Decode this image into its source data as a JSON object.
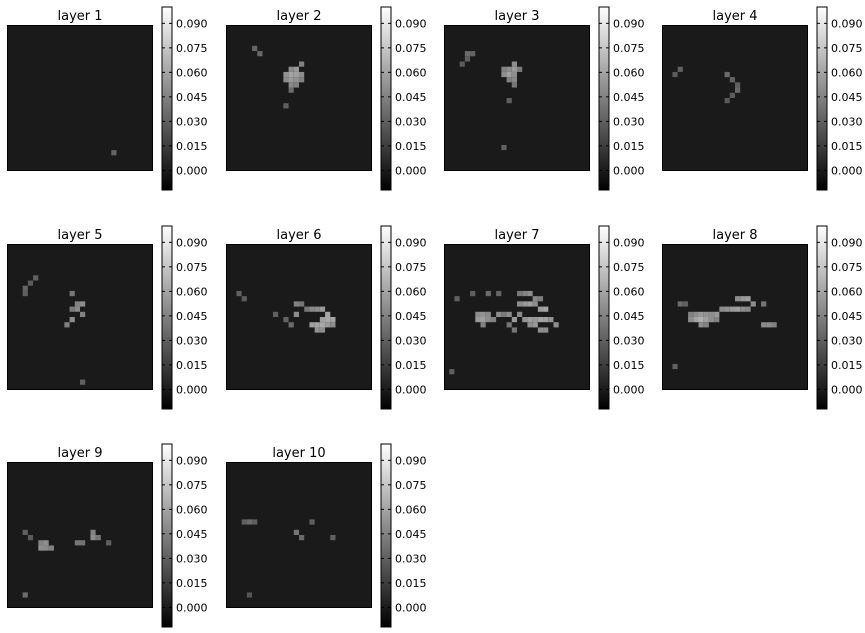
{
  "chart_data": {
    "type": "heatmap",
    "colormap": "gray",
    "background_color": "#1a1a1a",
    "colorbar_ticks": [
      "0.000",
      "0.015",
      "0.030",
      "0.045",
      "0.060",
      "0.075",
      "0.090"
    ],
    "grid_size": 28,
    "panels": [
      {
        "title": "layer 1",
        "cells": [
          [
            20,
            24,
            0.032
          ]
        ]
      },
      {
        "title": "layer 2",
        "cells": [
          [
            5,
            4,
            0.033
          ],
          [
            6,
            5,
            0.033
          ],
          [
            12,
            8,
            0.05
          ],
          [
            13,
            8,
            0.055
          ],
          [
            14,
            7,
            0.045
          ],
          [
            11,
            9,
            0.052
          ],
          [
            12,
            9,
            0.06
          ],
          [
            13,
            9,
            0.058
          ],
          [
            14,
            9,
            0.05
          ],
          [
            11,
            10,
            0.05
          ],
          [
            12,
            10,
            0.056
          ],
          [
            13,
            10,
            0.052
          ],
          [
            14,
            10,
            0.045
          ],
          [
            12,
            11,
            0.048
          ],
          [
            13,
            11,
            0.045
          ],
          [
            12,
            12,
            0.035
          ],
          [
            11,
            15,
            0.03
          ]
        ]
      },
      {
        "title": "layer 3",
        "cells": [
          [
            4,
            5,
            0.035
          ],
          [
            5,
            5,
            0.032
          ],
          [
            4,
            6,
            0.03
          ],
          [
            3,
            7,
            0.028
          ],
          [
            13,
            7,
            0.05
          ],
          [
            11,
            8,
            0.045
          ],
          [
            12,
            8,
            0.05
          ],
          [
            13,
            8,
            0.055
          ],
          [
            14,
            8,
            0.042
          ],
          [
            11,
            9,
            0.05
          ],
          [
            12,
            9,
            0.058
          ],
          [
            13,
            9,
            0.05
          ],
          [
            12,
            10,
            0.045
          ],
          [
            13,
            10,
            0.048
          ],
          [
            13,
            11,
            0.04
          ],
          [
            12,
            14,
            0.03
          ],
          [
            11,
            23,
            0.03
          ]
        ]
      },
      {
        "title": "layer 4",
        "cells": [
          [
            3,
            8,
            0.03
          ],
          [
            2,
            9,
            0.028
          ],
          [
            12,
            9,
            0.035
          ],
          [
            13,
            10,
            0.032
          ],
          [
            14,
            11,
            0.03
          ],
          [
            14,
            12,
            0.034
          ],
          [
            13,
            13,
            0.028
          ],
          [
            12,
            14,
            0.027
          ]
        ]
      },
      {
        "title": "layer 5",
        "cells": [
          [
            5,
            6,
            0.03
          ],
          [
            4,
            7,
            0.028
          ],
          [
            3,
            8,
            0.032
          ],
          [
            3,
            9,
            0.03
          ],
          [
            12,
            9,
            0.04
          ],
          [
            13,
            11,
            0.045
          ],
          [
            14,
            11,
            0.05
          ],
          [
            12,
            12,
            0.042
          ],
          [
            13,
            12,
            0.048
          ],
          [
            14,
            13,
            0.045
          ],
          [
            12,
            14,
            0.05
          ],
          [
            11,
            15,
            0.044
          ],
          [
            14,
            26,
            0.03
          ]
        ]
      },
      {
        "title": "layer 6",
        "cells": [
          [
            2,
            9,
            0.03
          ],
          [
            3,
            10,
            0.028
          ],
          [
            13,
            11,
            0.045
          ],
          [
            14,
            11,
            0.04
          ],
          [
            15,
            12,
            0.04
          ],
          [
            13,
            13,
            0.05
          ],
          [
            16,
            12,
            0.048
          ],
          [
            17,
            12,
            0.05
          ],
          [
            18,
            12,
            0.055
          ],
          [
            19,
            13,
            0.06
          ],
          [
            18,
            14,
            0.058
          ],
          [
            19,
            14,
            0.062
          ],
          [
            20,
            14,
            0.06
          ],
          [
            16,
            15,
            0.058
          ],
          [
            17,
            15,
            0.06
          ],
          [
            18,
            15,
            0.062
          ],
          [
            19,
            15,
            0.055
          ],
          [
            20,
            15,
            0.05
          ],
          [
            17,
            16,
            0.052
          ],
          [
            18,
            16,
            0.05
          ],
          [
            9,
            13,
            0.03
          ],
          [
            12,
            15,
            0.035
          ],
          [
            11,
            14,
            0.032
          ]
        ]
      },
      {
        "title": "layer 7",
        "cells": [
          [
            2,
            10,
            0.03
          ],
          [
            5,
            9,
            0.03
          ],
          [
            8,
            9,
            0.035
          ],
          [
            10,
            9,
            0.032
          ],
          [
            14,
            9,
            0.04
          ],
          [
            15,
            9,
            0.045
          ],
          [
            16,
            9,
            0.05
          ],
          [
            17,
            10,
            0.048
          ],
          [
            18,
            10,
            0.044
          ],
          [
            14,
            11,
            0.05
          ],
          [
            15,
            11,
            0.055
          ],
          [
            16,
            11,
            0.058
          ],
          [
            17,
            11,
            0.05
          ],
          [
            18,
            12,
            0.056
          ],
          [
            19,
            12,
            0.06
          ],
          [
            6,
            13,
            0.05
          ],
          [
            7,
            13,
            0.052
          ],
          [
            8,
            13,
            0.048
          ],
          [
            6,
            14,
            0.055
          ],
          [
            7,
            14,
            0.058
          ],
          [
            8,
            14,
            0.05
          ],
          [
            9,
            14,
            0.045
          ],
          [
            10,
            13,
            0.05
          ],
          [
            11,
            13,
            0.042
          ],
          [
            12,
            13,
            0.05
          ],
          [
            13,
            14,
            0.055
          ],
          [
            14,
            13,
            0.048
          ],
          [
            15,
            14,
            0.052
          ],
          [
            16,
            14,
            0.058
          ],
          [
            17,
            14,
            0.055
          ],
          [
            18,
            14,
            0.06
          ],
          [
            19,
            14,
            0.058
          ],
          [
            20,
            14,
            0.052
          ],
          [
            21,
            15,
            0.05
          ],
          [
            7,
            15,
            0.045
          ],
          [
            12,
            15,
            0.04
          ],
          [
            16,
            15,
            0.05
          ],
          [
            17,
            15,
            0.055
          ],
          [
            18,
            16,
            0.05
          ],
          [
            19,
            16,
            0.05
          ],
          [
            13,
            16,
            0.04
          ],
          [
            1,
            24,
            0.03
          ]
        ]
      },
      {
        "title": "layer 8",
        "cells": [
          [
            3,
            11,
            0.035
          ],
          [
            4,
            11,
            0.03
          ],
          [
            14,
            10,
            0.05
          ],
          [
            15,
            10,
            0.055
          ],
          [
            16,
            10,
            0.058
          ],
          [
            17,
            11,
            0.05
          ],
          [
            19,
            11,
            0.04
          ],
          [
            5,
            13,
            0.045
          ],
          [
            6,
            13,
            0.05
          ],
          [
            7,
            13,
            0.055
          ],
          [
            8,
            13,
            0.052
          ],
          [
            9,
            13,
            0.05
          ],
          [
            10,
            13,
            0.055
          ],
          [
            11,
            12,
            0.05
          ],
          [
            12,
            12,
            0.052
          ],
          [
            13,
            12,
            0.055
          ],
          [
            14,
            12,
            0.058
          ],
          [
            15,
            12,
            0.05
          ],
          [
            16,
            12,
            0.048
          ],
          [
            5,
            14,
            0.05
          ],
          [
            6,
            14,
            0.06
          ],
          [
            7,
            14,
            0.065
          ],
          [
            8,
            14,
            0.058
          ],
          [
            9,
            14,
            0.05
          ],
          [
            10,
            14,
            0.045
          ],
          [
            7,
            15,
            0.05
          ],
          [
            8,
            15,
            0.045
          ],
          [
            19,
            15,
            0.048
          ],
          [
            20,
            15,
            0.05
          ],
          [
            21,
            15,
            0.045
          ],
          [
            2,
            23,
            0.03
          ]
        ]
      },
      {
        "title": "layer 9",
        "cells": [
          [
            3,
            13,
            0.03
          ],
          [
            4,
            14,
            0.028
          ],
          [
            6,
            15,
            0.045
          ],
          [
            7,
            15,
            0.05
          ],
          [
            6,
            16,
            0.05
          ],
          [
            7,
            16,
            0.048
          ],
          [
            8,
            16,
            0.045
          ],
          [
            13,
            15,
            0.04
          ],
          [
            14,
            15,
            0.038
          ],
          [
            16,
            13,
            0.045
          ],
          [
            17,
            14,
            0.04
          ],
          [
            16,
            14,
            0.05
          ],
          [
            19,
            15,
            0.03
          ],
          [
            3,
            25,
            0.035
          ]
        ]
      },
      {
        "title": "layer 10",
        "cells": [
          [
            3,
            11,
            0.03
          ],
          [
            4,
            11,
            0.035
          ],
          [
            5,
            11,
            0.03
          ],
          [
            16,
            11,
            0.03
          ],
          [
            13,
            13,
            0.04
          ],
          [
            14,
            14,
            0.035
          ],
          [
            20,
            14,
            0.03
          ],
          [
            4,
            25,
            0.025
          ]
        ]
      }
    ]
  }
}
